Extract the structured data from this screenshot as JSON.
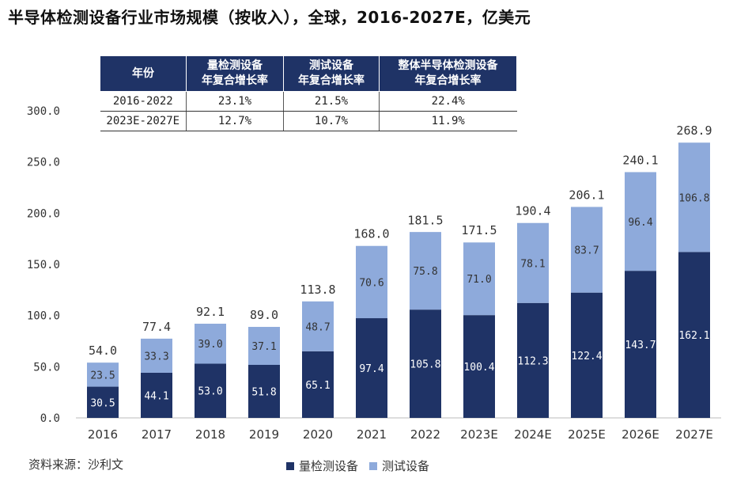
{
  "title": "半导体检测设备行业市场规模（按收入），全球，2016-2027E，亿美元",
  "source": "资料来源：沙利文",
  "colors": {
    "measurement": "#1f3366",
    "test": "#8eaadb",
    "header": "#1f3366"
  },
  "cagr_table": {
    "headers": [
      "年份",
      "量检测设备\n年复合增长率",
      "测试设备\n年复合增长率",
      "整体半导体检测设备\n年复合增长率"
    ],
    "rows": [
      [
        "2016-2022",
        "23.1%",
        "21.5%",
        "22.4%"
      ],
      [
        "2023E-2027E",
        "12.7%",
        "10.7%",
        "11.9%"
      ]
    ]
  },
  "chart_data": {
    "type": "bar",
    "stacked": true,
    "categories": [
      "2016",
      "2017",
      "2018",
      "2019",
      "2020",
      "2021",
      "2022",
      "2023E",
      "2024E",
      "2025E",
      "2026E",
      "2027E"
    ],
    "series": [
      {
        "name": "量检测设备",
        "values": [
          30.5,
          44.1,
          53.0,
          51.8,
          65.1,
          97.4,
          105.8,
          100.4,
          112.3,
          122.4,
          143.7,
          162.1
        ]
      },
      {
        "name": "测试设备",
        "values": [
          23.5,
          33.3,
          39.0,
          37.1,
          48.7,
          70.6,
          75.8,
          71.0,
          78.1,
          83.7,
          96.4,
          106.8
        ]
      }
    ],
    "totals": [
      54.0,
      77.4,
      92.1,
      89.0,
      113.8,
      168.0,
      181.5,
      171.5,
      190.4,
      206.1,
      240.1,
      268.9
    ],
    "ylim": [
      0,
      300
    ],
    "yticks": [
      0,
      50,
      100,
      150,
      200,
      250,
      300
    ],
    "grid": false,
    "legend": "bottom"
  }
}
